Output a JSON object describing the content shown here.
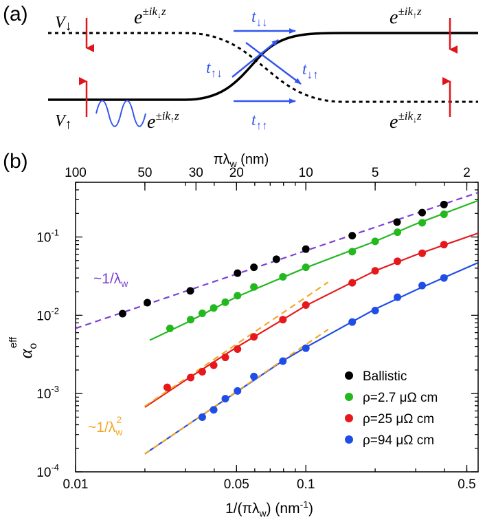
{
  "panel_a": {
    "label": "(a)",
    "v_down": "V",
    "v_down_arrow": "↓",
    "v_up": "V",
    "v_up_arrow": "↑",
    "wave_base": "e",
    "wave_exp_prefix": "±ik",
    "wave_exp_z": "z",
    "t_dd": "t",
    "t_dd_sub": "↓↓",
    "t_ud": "t",
    "t_ud_sub": "↑↓",
    "t_du": "t",
    "t_du_sub": "↓↑",
    "t_uu": "t",
    "t_uu_sub": "↑↑",
    "spin_down": "↓",
    "spin_up": "↑",
    "colors": {
      "transmission": "#3355ee",
      "moment_arrow": "#e0141b"
    }
  },
  "panel_b": {
    "label": "(b)"
  },
  "chart_data": {
    "type": "scatter",
    "xscale": "log",
    "yscale": "log",
    "xlim": [
      0.01,
      0.56
    ],
    "ylim": [
      0.0001,
      0.5
    ],
    "xticks": [
      0.01,
      0.05,
      0.1,
      0.5
    ],
    "xtick_labels": [
      "0.01",
      "0.05",
      "0.1",
      "0.5"
    ],
    "yticks": [
      0.0001,
      0.001,
      0.01,
      0.1
    ],
    "ytick_labels": [
      "10",
      "10",
      "10",
      "10"
    ],
    "ytick_exponents": [
      "-4",
      "-3",
      "-2",
      "-1"
    ],
    "xlabel": "1/(πλ",
    "xlabel_sub": "w",
    "xlabel_unit": ") (nm",
    "xlabel_unit_exp": "-1",
    "xlabel_close": ")",
    "ylabel": "α",
    "ylabel_sub": "o",
    "ylabel_sup": "eff",
    "top_axis_label": "πλ",
    "top_axis_label_sub": "w",
    "top_axis_unit": " (nm)",
    "top_ticks_nm": [
      100,
      50,
      30,
      20,
      10,
      5,
      2
    ],
    "top_tick_labels": [
      "100",
      "50",
      "30",
      "20",
      "10",
      "5",
      "2"
    ],
    "legend_position": "bottom-right",
    "annotations": [
      {
        "text": "~1/λ",
        "sub": "w",
        "sup": "",
        "color": "#7f3fd6"
      },
      {
        "text": "~1/λ",
        "sub": "w",
        "sup": "2",
        "color": "#f5a623"
      }
    ],
    "series": [
      {
        "name": "Ballistic",
        "color": "#000000",
        "x": [
          0.016,
          0.0205,
          0.0315,
          0.0505,
          0.0595,
          0.0745,
          0.1,
          0.159,
          0.249,
          0.32,
          0.398
        ],
        "y": [
          0.0105,
          0.0145,
          0.0205,
          0.0345,
          0.041,
          0.052,
          0.07,
          0.104,
          0.155,
          0.205,
          0.26
        ],
        "fit": [
          [
            0.01,
            0.0068
          ],
          [
            0.56,
            0.37
          ]
        ],
        "fit_color": "#7f3fd6",
        "fit_dashed": true
      },
      {
        "name": "ρ=2.7 μΩ cm",
        "color": "#22b81e",
        "x": [
          0.0257,
          0.0316,
          0.0355,
          0.0398,
          0.0447,
          0.0505,
          0.0595,
          0.0795,
          0.1,
          0.159,
          0.2,
          0.25,
          0.32,
          0.398
        ],
        "y": [
          0.0068,
          0.0088,
          0.0106,
          0.0124,
          0.0147,
          0.0178,
          0.023,
          0.031,
          0.041,
          0.065,
          0.088,
          0.115,
          0.152,
          0.195
        ],
        "fit": [
          [
            0.021,
            0.0048
          ],
          [
            0.03,
            0.0079
          ],
          [
            0.05,
            0.0172
          ],
          [
            0.1,
            0.0405
          ],
          [
            0.2,
            0.088
          ],
          [
            0.3,
            0.146
          ],
          [
            0.56,
            0.292
          ]
        ],
        "fit_color": "#22b81e",
        "fit_dashed": false
      },
      {
        "name": "ρ=25 μΩ cm",
        "color": "#e6181c",
        "x": [
          0.025,
          0.0316,
          0.0355,
          0.0398,
          0.0447,
          0.0505,
          0.0595,
          0.0795,
          0.1,
          0.159,
          0.2,
          0.25,
          0.32,
          0.398
        ],
        "y": [
          0.0012,
          0.0016,
          0.0019,
          0.0023,
          0.0029,
          0.0037,
          0.0053,
          0.0088,
          0.0135,
          0.026,
          0.037,
          0.049,
          0.062,
          0.08
        ],
        "fit": [
          [
            0.02,
            0.00067
          ],
          [
            0.03,
            0.00148
          ],
          [
            0.05,
            0.0039
          ],
          [
            0.08,
            0.0089
          ],
          [
            0.1,
            0.0133
          ],
          [
            0.2,
            0.037
          ],
          [
            0.3,
            0.059
          ],
          [
            0.56,
            0.112
          ]
        ],
        "fit_color": "#e6181c",
        "fit_dashed": false
      },
      {
        "name": "ρ=94 μΩ cm",
        "color": "#1f4de6",
        "x": [
          0.0355,
          0.0398,
          0.0447,
          0.0505,
          0.0595,
          0.0795,
          0.1,
          0.159,
          0.2,
          0.25,
          0.32,
          0.398
        ],
        "y": [
          0.0005,
          0.00062,
          0.00086,
          0.00108,
          0.00165,
          0.0026,
          0.0038,
          0.0082,
          0.0115,
          0.017,
          0.024,
          0.03
        ],
        "fit": [
          [
            0.02,
            0.00017
          ],
          [
            0.03,
            0.00038
          ],
          [
            0.05,
            0.00105
          ],
          [
            0.08,
            0.00265
          ],
          [
            0.1,
            0.0039
          ],
          [
            0.2,
            0.012
          ],
          [
            0.3,
            0.021
          ],
          [
            0.56,
            0.047
          ]
        ],
        "fit_color": "#1f4de6",
        "fit_dashed": false
      }
    ],
    "guides": [
      {
        "name": "inverse-square-upper",
        "from": [
          0.02,
          0.00069
        ],
        "to": [
          0.125,
          0.0265
        ],
        "color": "#f5a623",
        "dashed": true
      },
      {
        "name": "inverse-square-lower",
        "from": [
          0.02,
          0.00017
        ],
        "to": [
          0.125,
          0.0066
        ],
        "color": "#f5a623",
        "dashed": true
      }
    ]
  }
}
